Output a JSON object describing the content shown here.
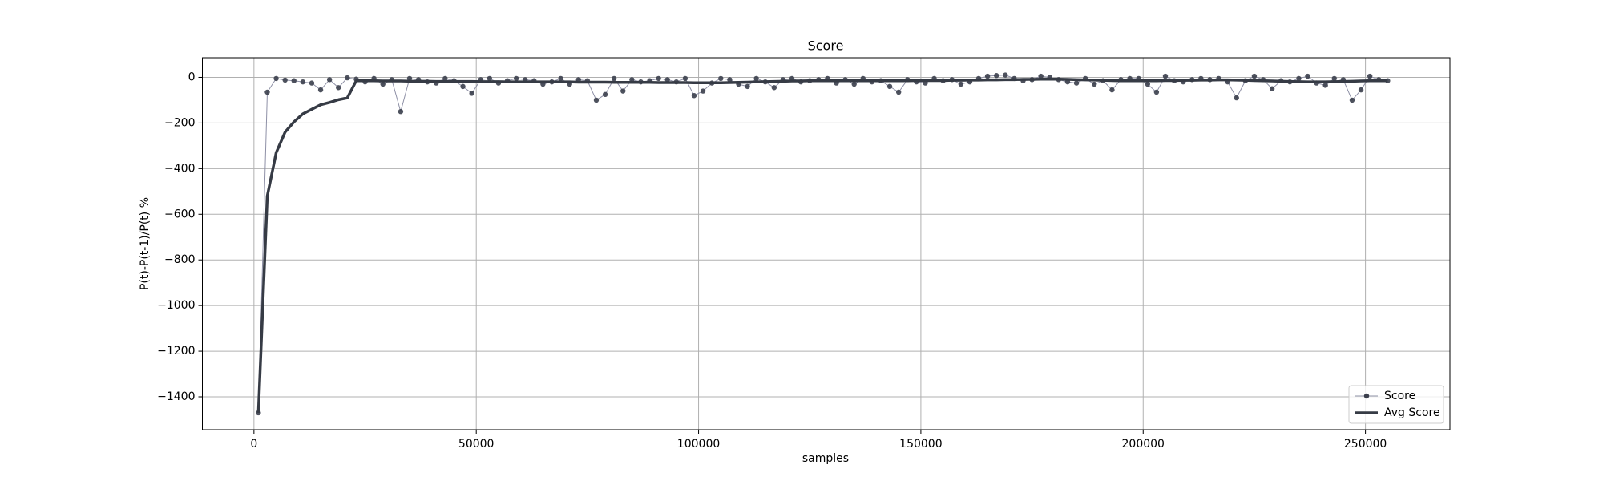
{
  "chart_data": {
    "type": "line",
    "title": "Score",
    "x_label": "samples",
    "y_label": "P(t)-P(t-1)/P(t) %",
    "x": [
      1000,
      3000,
      5000,
      7000,
      9000,
      11000,
      13000,
      15000,
      17000,
      19000,
      21000,
      23000,
      25000,
      27000,
      29000,
      31000,
      33000,
      35000,
      37000,
      39000,
      41000,
      43000,
      45000,
      47000,
      49000,
      51000,
      53000,
      55000,
      57000,
      59000,
      61000,
      63000,
      65000,
      67000,
      69000,
      71000,
      73000,
      75000,
      77000,
      79000,
      81000,
      83000,
      85000,
      87000,
      89000,
      91000,
      93000,
      95000,
      97000,
      99000,
      101000,
      103000,
      105000,
      107000,
      109000,
      111000,
      113000,
      115000,
      117000,
      119000,
      121000,
      123000,
      125000,
      127000,
      129000,
      131000,
      133000,
      135000,
      137000,
      139000,
      141000,
      143000,
      145000,
      147000,
      149000,
      151000,
      153000,
      155000,
      157000,
      159000,
      161000,
      163000,
      165000,
      167000,
      169000,
      171000,
      173000,
      175000,
      177000,
      179000,
      181000,
      183000,
      185000,
      187000,
      189000,
      191000,
      193000,
      195000,
      197000,
      199000,
      201000,
      203000,
      205000,
      207000,
      209000,
      211000,
      213000,
      215000,
      217000,
      219000,
      221000,
      223000,
      225000,
      227000,
      229000,
      231000,
      233000,
      235000,
      237000,
      239000,
      241000,
      243000,
      245000,
      247000,
      249000,
      251000,
      253000,
      255000
    ],
    "series": [
      {
        "name": "Score",
        "color": "#8e90a6",
        "marker_color": "#3b3f4c",
        "linewidth": 1,
        "marker": true,
        "values": [
          -1470,
          -65,
          -5,
          -12,
          -15,
          -20,
          -25,
          -55,
          -10,
          -45,
          -2,
          -8,
          -20,
          -5,
          -30,
          -10,
          -150,
          -5,
          -10,
          -20,
          -25,
          -5,
          -15,
          -40,
          -70,
          -10,
          -5,
          -25,
          -15,
          -5,
          -10,
          -15,
          -30,
          -20,
          -5,
          -30,
          -10,
          -15,
          -100,
          -75,
          -5,
          -60,
          -10,
          -20,
          -15,
          -5,
          -10,
          -20,
          -5,
          -80,
          -60,
          -25,
          -5,
          -10,
          -30,
          -40,
          -5,
          -20,
          -45,
          -10,
          -5,
          -20,
          -15,
          -10,
          -5,
          -25,
          -10,
          -30,
          -5,
          -20,
          -15,
          -40,
          -65,
          -10,
          -20,
          -25,
          -5,
          -15,
          -10,
          -30,
          -20,
          -5,
          5,
          8,
          10,
          -5,
          -15,
          -10,
          5,
          0,
          -10,
          -20,
          -25,
          -5,
          -30,
          -15,
          -55,
          -10,
          -5,
          -5,
          -30,
          -65,
          5,
          -15,
          -20,
          -10,
          -5,
          -10,
          -5,
          -20,
          -90,
          -15,
          5,
          -10,
          -50,
          -15,
          -20,
          -5,
          5,
          -25,
          -35,
          -5,
          -10,
          -100,
          -55,
          5,
          -10,
          -15
        ]
      },
      {
        "name": "Avg Score",
        "color": "#363b45",
        "linewidth": 3.5,
        "marker": false,
        "values": [
          -1470,
          -520,
          -330,
          -240,
          -195,
          -160,
          -140,
          -120,
          -110,
          -98,
          -90,
          -15,
          -15,
          -15,
          -16,
          -16,
          -16,
          -17,
          -17,
          -17,
          -18,
          -18,
          -18,
          -18,
          -18,
          -19,
          -19,
          -19,
          -20,
          -20,
          -20,
          -20,
          -20,
          -20,
          -20,
          -20,
          -21,
          -21,
          -21,
          -21,
          -22,
          -22,
          -22,
          -22,
          -22,
          -23,
          -23,
          -23,
          -23,
          -24,
          -24,
          -24,
          -24,
          -23,
          -22,
          -21,
          -20,
          -19,
          -18,
          -17,
          -16,
          -16,
          -15,
          -15,
          -15,
          -15,
          -15,
          -15,
          -15,
          -15,
          -15,
          -15,
          -15,
          -15,
          -14,
          -14,
          -14,
          -14,
          -13,
          -13,
          -12,
          -12,
          -11,
          -11,
          -10,
          -10,
          -9,
          -9,
          -8,
          -8,
          -8,
          -9,
          -10,
          -11,
          -12,
          -13,
          -14,
          -15,
          -15,
          -15,
          -15,
          -15,
          -14,
          -14,
          -13,
          -13,
          -12,
          -12,
          -11,
          -11,
          -12,
          -13,
          -14,
          -15,
          -16,
          -17,
          -18,
          -19,
          -20,
          -20,
          -20,
          -19,
          -18,
          -17,
          -16,
          -15,
          -15,
          -15
        ]
      }
    ],
    "xlim": [
      -11600,
      269000
    ],
    "ylim": [
      -1544,
      86
    ],
    "xticks": [
      0,
      50000,
      100000,
      150000,
      200000,
      250000
    ],
    "yticks": [
      {
        "value": -1400,
        "label": "−1400"
      },
      {
        "value": -1200,
        "label": "−1200"
      },
      {
        "value": -1000,
        "label": "−1000"
      },
      {
        "value": -800,
        "label": "−800"
      },
      {
        "value": -600,
        "label": "−600"
      },
      {
        "value": -400,
        "label": "−400"
      },
      {
        "value": -200,
        "label": "−200"
      },
      0
    ],
    "grid": true,
    "legend": "lower right"
  }
}
